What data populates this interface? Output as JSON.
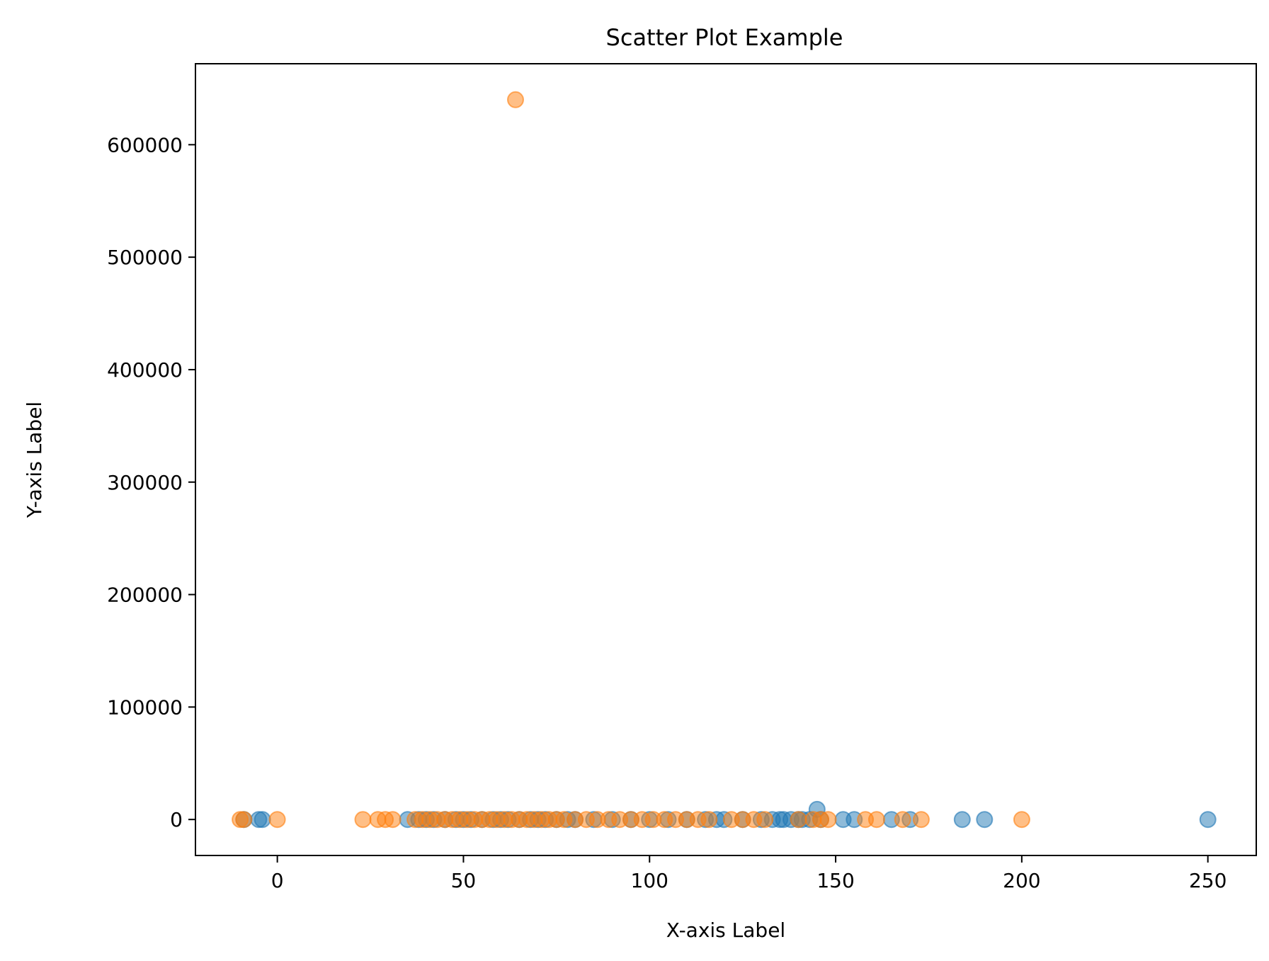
{
  "chart_data": {
    "type": "scatter",
    "title": "Scatter Plot Example",
    "xlabel": "X-axis Label",
    "ylabel": "Y-axis Label",
    "xlim": [
      -22,
      263
    ],
    "ylim": [
      -32000,
      672000
    ],
    "xticks": [
      0,
      50,
      100,
      150,
      200,
      250
    ],
    "yticks": [
      0,
      100000,
      200000,
      300000,
      400000,
      500000,
      600000
    ],
    "grid": false,
    "legend": "none",
    "series": [
      {
        "color": "#1f77b4",
        "points": [
          [
            -9,
            0
          ],
          [
            -5,
            0
          ],
          [
            -4,
            0
          ],
          [
            35,
            0
          ],
          [
            38,
            0
          ],
          [
            40,
            0
          ],
          [
            42,
            0
          ],
          [
            45,
            0
          ],
          [
            48,
            0
          ],
          [
            50,
            0
          ],
          [
            52,
            0
          ],
          [
            55,
            0
          ],
          [
            58,
            0
          ],
          [
            60,
            0
          ],
          [
            62,
            0
          ],
          [
            65,
            0
          ],
          [
            68,
            0
          ],
          [
            70,
            0
          ],
          [
            72,
            0
          ],
          [
            75,
            0
          ],
          [
            78,
            0
          ],
          [
            80,
            0
          ],
          [
            85,
            0
          ],
          [
            90,
            0
          ],
          [
            95,
            0
          ],
          [
            100,
            0
          ],
          [
            105,
            0
          ],
          [
            110,
            0
          ],
          [
            115,
            0
          ],
          [
            118,
            0
          ],
          [
            120,
            0
          ],
          [
            125,
            0
          ],
          [
            130,
            0
          ],
          [
            133,
            0
          ],
          [
            135,
            0
          ],
          [
            136,
            0
          ],
          [
            138,
            0
          ],
          [
            140,
            0
          ],
          [
            141,
            0
          ],
          [
            143,
            0
          ],
          [
            145,
            9000
          ],
          [
            146,
            0
          ],
          [
            152,
            0
          ],
          [
            155,
            0
          ],
          [
            165,
            0
          ],
          [
            170,
            0
          ],
          [
            184,
            0
          ],
          [
            190,
            0
          ],
          [
            250,
            0
          ]
        ]
      },
      {
        "color": "#ff7f0e",
        "points": [
          [
            -10,
            0
          ],
          [
            -9,
            0
          ],
          [
            0,
            0
          ],
          [
            23,
            0
          ],
          [
            27,
            0
          ],
          [
            29,
            0
          ],
          [
            31,
            0
          ],
          [
            37,
            0
          ],
          [
            39,
            0
          ],
          [
            41,
            0
          ],
          [
            43,
            0
          ],
          [
            45,
            0
          ],
          [
            47,
            0
          ],
          [
            49,
            0
          ],
          [
            51,
            0
          ],
          [
            53,
            0
          ],
          [
            55,
            0
          ],
          [
            57,
            0
          ],
          [
            59,
            0
          ],
          [
            61,
            0
          ],
          [
            63,
            0
          ],
          [
            65,
            0
          ],
          [
            67,
            0
          ],
          [
            69,
            0
          ],
          [
            71,
            0
          ],
          [
            73,
            0
          ],
          [
            75,
            0
          ],
          [
            77,
            0
          ],
          [
            80,
            0
          ],
          [
            83,
            0
          ],
          [
            86,
            0
          ],
          [
            89,
            0
          ],
          [
            92,
            0
          ],
          [
            95,
            0
          ],
          [
            98,
            0
          ],
          [
            101,
            0
          ],
          [
            104,
            0
          ],
          [
            107,
            0
          ],
          [
            110,
            0
          ],
          [
            113,
            0
          ],
          [
            116,
            0
          ],
          [
            122,
            0
          ],
          [
            125,
            0
          ],
          [
            128,
            0
          ],
          [
            131,
            0
          ],
          [
            140,
            0
          ],
          [
            144,
            0
          ],
          [
            146,
            0
          ],
          [
            148,
            0
          ],
          [
            158,
            0
          ],
          [
            161,
            0
          ],
          [
            168,
            0
          ],
          [
            173,
            0
          ],
          [
            200,
            0
          ],
          [
            64,
            640000
          ]
        ]
      }
    ]
  }
}
